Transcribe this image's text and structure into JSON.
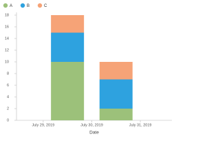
{
  "chart_data": {
    "type": "bar",
    "stacked": true,
    "x": [
      0.5,
      1.5
    ],
    "series": [
      {
        "name": "A",
        "color": "#9cc17a",
        "values": [
          10,
          2
        ]
      },
      {
        "name": "B",
        "color": "#2ea2df",
        "values": [
          5,
          5
        ]
      },
      {
        "name": "C",
        "color": "#f6a377",
        "values": [
          3,
          3
        ]
      }
    ],
    "x_label": "Date",
    "xlim": [
      -0.55,
      2.65
    ],
    "xticks": [
      {
        "value": 0,
        "label": "July 29, 2019"
      },
      {
        "value": 1,
        "label": "July 30, 2019"
      },
      {
        "value": 2,
        "label": "July 31, 2019"
      }
    ],
    "ylim": [
      0,
      18
    ],
    "yticks": [
      0,
      2,
      4,
      6,
      8,
      10,
      12,
      14,
      16,
      18
    ],
    "legend": "top-left"
  }
}
